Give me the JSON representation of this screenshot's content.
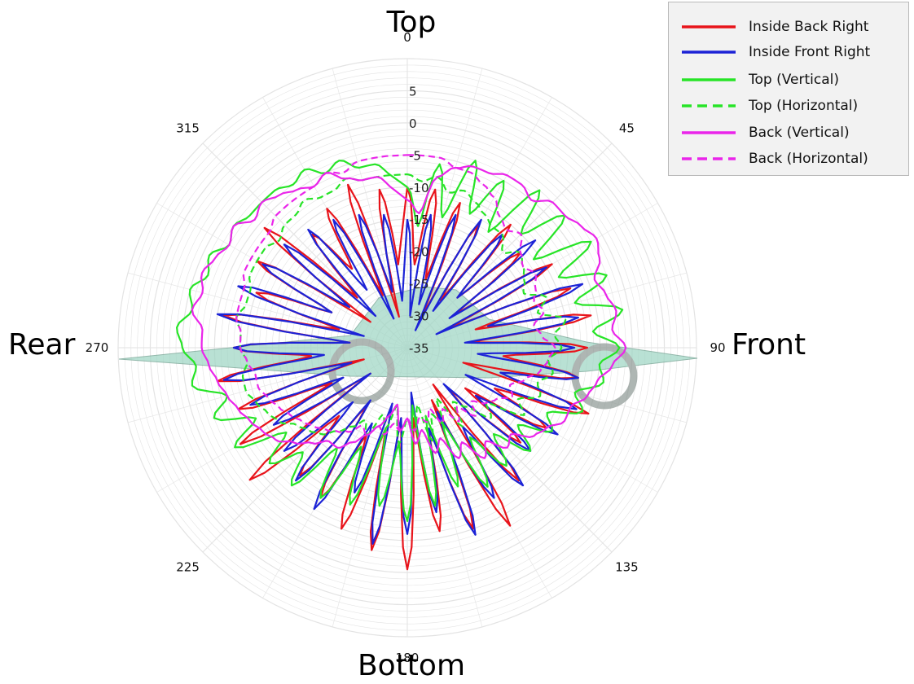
{
  "labels": {
    "top": "Top",
    "bottom": "Bottom",
    "rear": "Rear",
    "front": "Front"
  },
  "chart_data": {
    "type": "line",
    "coordinate_system": "polar",
    "theta_direction": "clockwise",
    "theta_zero_location": "top",
    "theta_ticks": [
      0,
      45,
      90,
      135,
      180,
      225,
      270,
      315
    ],
    "theta_tick_labels": [
      "0",
      "45",
      "90",
      "135",
      "180",
      "225",
      "270",
      "315"
    ],
    "r_ticks": [
      5,
      0,
      -5,
      -10,
      -15,
      -20,
      -25,
      -30,
      -35
    ],
    "r_tick_labels": [
      "5",
      "0",
      "-5",
      "-10",
      "-15",
      "-20",
      "-25",
      "-30",
      "-35"
    ],
    "rlim": [
      -35,
      10
    ],
    "grid": true,
    "legend_position": "top-right",
    "theta_sample_step_deg": 5,
    "series": [
      {
        "name": "Inside Back Right",
        "color": "#e8141b",
        "dash": "solid",
        "values": [
          -10,
          -22,
          -10,
          -24,
          -11,
          -30,
          -13,
          -26,
          -10,
          -24,
          -12,
          -26,
          -9,
          -28,
          -8,
          -24,
          -6,
          -25,
          -7,
          -20,
          -8,
          -26,
          -5,
          -20,
          -10,
          -24,
          -12,
          -26,
          -8,
          -28,
          -3,
          -26,
          -5,
          -22,
          -6,
          -24,
          -0.5,
          -24,
          -3,
          -22,
          -5,
          -20,
          -8,
          -24,
          -9,
          -20,
          -3,
          -28,
          -5,
          -22,
          -7,
          -28,
          -5,
          -20,
          -8,
          -26,
          -6,
          -24,
          -10,
          -22,
          -8,
          -28,
          -6,
          -24,
          -12,
          -20,
          -10,
          -26,
          -8,
          -30,
          -10,
          -24
        ]
      },
      {
        "name": "Inside Front Right",
        "color": "#1c23d6",
        "dash": "solid",
        "values": [
          -15,
          -30,
          -14,
          -28,
          -13,
          -32,
          -12,
          -28,
          -12,
          -24,
          -9,
          -27,
          -10,
          -30,
          -6,
          -22,
          -8,
          -26,
          -9,
          -24,
          -8,
          -20,
          -7,
          -25,
          -8,
          -22,
          -10,
          -27,
          -7,
          -20,
          -8,
          -24,
          -4,
          -22,
          -9,
          -28,
          -6,
          -24,
          -4,
          -26,
          -11,
          -22,
          -6,
          -25,
          -8,
          -23,
          -10,
          -28,
          -11,
          -24,
          -9,
          -26,
          -6,
          -22,
          -8,
          -26,
          -5,
          -28,
          -7,
          -22,
          -9,
          -24,
          -10,
          -28,
          -11,
          -24,
          -12,
          -30,
          -13,
          -26,
          -14,
          -30
        ]
      },
      {
        "name": "Top (Vertical)",
        "color": "#27e427",
        "dash": "solid",
        "values": [
          -10,
          -16,
          -6,
          -14,
          -4,
          -12,
          -5,
          -13,
          -3,
          -10,
          -3,
          -11,
          -2,
          -9,
          -2,
          -8,
          -1,
          -6,
          -2,
          -5,
          -4,
          -8,
          -6,
          -11,
          -9,
          -14,
          -10,
          -16,
          -11,
          -18,
          -10,
          -22,
          -12,
          -24,
          -10,
          -26,
          -8,
          -20,
          -10,
          -22,
          -9,
          -18,
          -8,
          -16,
          -7,
          -12,
          -7,
          -12,
          -4,
          -9,
          -3,
          -6,
          -1,
          -2,
          0,
          1,
          -1,
          0,
          -2,
          -1,
          -3,
          -2,
          -3,
          -3,
          -3,
          -4,
          -3,
          -5,
          -4,
          -6,
          -6,
          -8
        ]
      },
      {
        "name": "Top (Horizontal)",
        "color": "#27e427",
        "dash": "dashed",
        "values": [
          -8,
          -9,
          -8,
          -10,
          -9,
          -10,
          -11,
          -12,
          -12,
          -14,
          -12,
          -13,
          -14,
          -15,
          -12,
          -14,
          -10,
          -12,
          -11,
          -13,
          -12,
          -14,
          -13,
          -16,
          -14,
          -20,
          -18,
          -22,
          -24,
          -20,
          -26,
          -22,
          -24,
          -20,
          -26,
          -22,
          -24,
          -20,
          -26,
          -22,
          -24,
          -20,
          -22,
          -20,
          -18,
          -16,
          -15,
          -14,
          -12,
          -11,
          -10,
          -9,
          -9,
          -10,
          -9,
          -9,
          -8,
          -9,
          -9,
          -8,
          -8,
          -8,
          -9,
          -8,
          -8,
          -7,
          -8,
          -8,
          -7,
          -8,
          -8,
          -8
        ]
      },
      {
        "name": "Back (Vertical)",
        "color": "#ea25ea",
        "dash": "solid",
        "values": [
          -12,
          -14,
          -8,
          -6,
          -5,
          -5,
          -4,
          -4,
          -5,
          -3,
          -3,
          -2,
          -1,
          -2,
          -4,
          -3,
          -2,
          -3,
          -1,
          -3,
          -5,
          -6,
          -8,
          -8,
          -10,
          -11,
          -14,
          -13,
          -16,
          -14,
          -18,
          -16,
          -20,
          -18,
          -22,
          -20,
          -24,
          -22,
          -26,
          -24,
          -22,
          -20,
          -18,
          -16,
          -16,
          -14,
          -12,
          -10,
          -9,
          -8,
          -7,
          -6,
          -5,
          -4,
          -3,
          -3,
          -1,
          -2,
          -1,
          -2,
          -3,
          -2,
          -4,
          -3,
          -4,
          -5,
          -6,
          -5,
          -7,
          -8,
          -8,
          -10
        ]
      },
      {
        "name": "Back (Horizontal)",
        "color": "#ea25ea",
        "dash": "dashed",
        "values": [
          -5,
          -5,
          -5,
          -6,
          -6,
          -7,
          -8,
          -10,
          -11,
          -10,
          -12,
          -13,
          -12,
          -13,
          -14,
          -13,
          -15,
          -14,
          -12,
          -13,
          -14,
          -16,
          -18,
          -17,
          -19,
          -20,
          -22,
          -20,
          -23,
          -21,
          -24,
          -22,
          -25,
          -23,
          -24,
          -22,
          -24,
          -22,
          -23,
          -21,
          -22,
          -20,
          -21,
          -19,
          -18,
          -17,
          -16,
          -15,
          -14,
          -13,
          -12,
          -11,
          -11,
          -10,
          -9,
          -9,
          -8,
          -8,
          -8,
          -7,
          -7,
          -7,
          -7,
          -6,
          -6,
          -6,
          -6,
          -5,
          -6,
          -5,
          -5,
          -5
        ]
      }
    ]
  }
}
